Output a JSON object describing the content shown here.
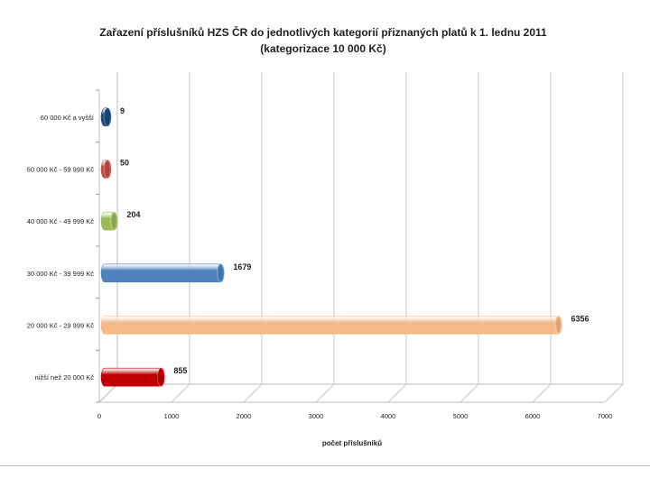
{
  "chart_data": {
    "type": "bar",
    "orientation": "horizontal",
    "title": "Zařazení příslušníků HZS ČR do jednotlivých kategorií přiznaných platů  k 1. lednu 2011",
    "subtitle": "(kategorizace 10 000 Kč)",
    "xlabel": "počet příslušníků",
    "ylabel": "",
    "xlim": [
      0,
      7000
    ],
    "xticks": [
      0,
      1000,
      2000,
      3000,
      4000,
      5000,
      6000,
      7000
    ],
    "grid": true,
    "legend": "none",
    "categories": [
      "nižší než 20 000 Kč",
      "20 000 Kč - 29 999 Kč",
      "30 000 Kč - 39 999 Kč",
      "40 000 Kč - 49 999 Kč",
      "50 000 Kč - 59 999 Kč",
      "60 000 Kč a vyšší"
    ],
    "values": [
      855,
      6356,
      1679,
      204,
      50,
      9
    ],
    "colors": [
      "#c00000",
      "#f5b98a",
      "#4f81bd",
      "#9bbb59",
      "#c0504d",
      "#1f497d"
    ]
  }
}
